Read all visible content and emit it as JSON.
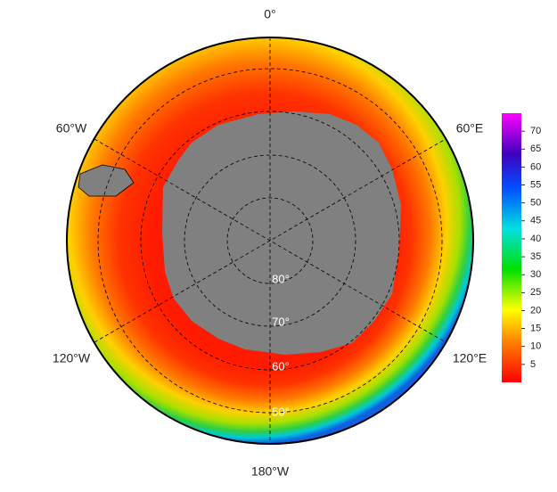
{
  "map": {
    "longitude_labels": [
      "0°",
      "60°E",
      "120°E",
      "180°W",
      "120°W",
      "60°W"
    ],
    "latitude_labels": [
      "80°",
      "70°",
      "60°",
      "50°"
    ]
  },
  "colorbar": {
    "range": [
      0,
      75
    ],
    "ticks": [
      5,
      10,
      15,
      20,
      25,
      30,
      35,
      40,
      45,
      50,
      55,
      60,
      65,
      70
    ]
  }
}
